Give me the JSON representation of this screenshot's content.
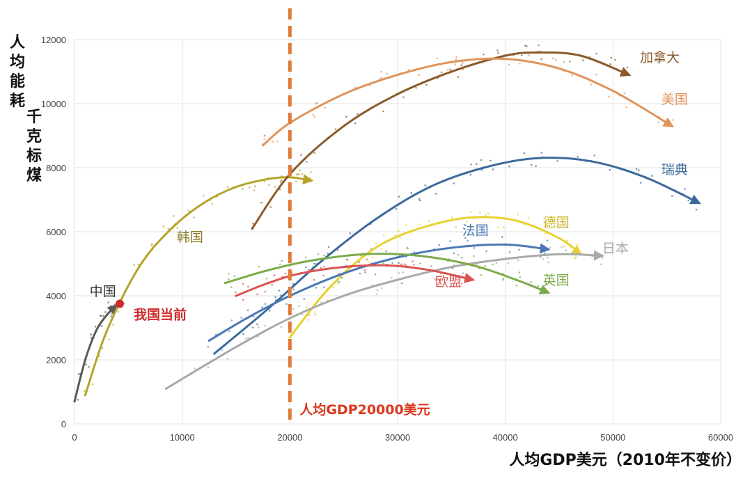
{
  "chart_data": {
    "type": "line",
    "ylabel_lines": [
      "人均能耗",
      "千克标煤"
    ],
    "xlabel": "人均GDP美元（2010年不变价）",
    "xlim": [
      0,
      60000
    ],
    "ylim": [
      0,
      12000
    ],
    "x_ticks": [
      0,
      10000,
      20000,
      30000,
      40000,
      50000,
      60000
    ],
    "y_ticks": [
      0,
      2000,
      4000,
      6000,
      8000,
      10000,
      12000
    ],
    "x_tick_labels": [
      "0",
      "10000",
      "20000",
      "30000",
      "40000",
      "50000",
      "60000"
    ],
    "y_tick_labels": [
      "0",
      "2000",
      "4000",
      "6000",
      "8000",
      "10000",
      "12000"
    ],
    "grid": true,
    "reference_line": {
      "x": 20000,
      "label": "人均GDP20000美元",
      "color": "#e07b39"
    },
    "current_point": {
      "x": 4200,
      "y": 3750,
      "label": "我国当前",
      "color": "#cc2b2b"
    },
    "series": [
      {
        "name": "中国",
        "color": "#5a5a5a",
        "x": [
          0,
          1000,
          2000,
          3000,
          3900
        ],
        "y": [
          700,
          2000,
          2900,
          3400,
          3700
        ]
      },
      {
        "name": "韩国",
        "color": "#b5a42a",
        "x": [
          1000,
          3000,
          6000,
          9000,
          12000,
          15000,
          18000,
          20000,
          22000
        ],
        "y": [
          900,
          2900,
          4900,
          6100,
          6900,
          7400,
          7650,
          7700,
          7600
        ]
      },
      {
        "name": "加拿大",
        "color": "#8b5a2b",
        "x": [
          16500,
          20000,
          25000,
          30000,
          35000,
          40000,
          43000,
          47000,
          51500
        ],
        "y": [
          6100,
          7800,
          9300,
          10300,
          11000,
          11500,
          11600,
          11500,
          10900
        ]
      },
      {
        "name": "美国",
        "color": "#e0935a",
        "x": [
          17500,
          20000,
          25000,
          30000,
          35000,
          40000,
          45000,
          50000,
          55500
        ],
        "y": [
          8700,
          9400,
          10300,
          10900,
          11300,
          11400,
          11100,
          10400,
          9300
        ]
      },
      {
        "name": "瑞典",
        "color": "#3b6a9c",
        "x": [
          13000,
          18000,
          23000,
          28000,
          33000,
          38000,
          43000,
          48000,
          53000,
          58000
        ],
        "y": [
          2200,
          3600,
          5100,
          6400,
          7400,
          8000,
          8300,
          8200,
          7700,
          6900
        ]
      },
      {
        "name": "德国",
        "color": "#e6d22e",
        "x": [
          20000,
          23000,
          26000,
          29000,
          33000,
          37000,
          41000,
          45000,
          47000
        ],
        "y": [
          2700,
          4000,
          5000,
          5700,
          6200,
          6450,
          6350,
          5800,
          5300
        ]
      },
      {
        "name": "法国",
        "color": "#4a78b5",
        "x": [
          12500,
          16000,
          20000,
          25000,
          30000,
          35000,
          40000,
          44000
        ],
        "y": [
          2600,
          3300,
          4000,
          4700,
          5200,
          5500,
          5600,
          5450
        ]
      },
      {
        "name": "日本",
        "color": "#a9a9a9",
        "x": [
          8500,
          15000,
          20000,
          25000,
          30000,
          35000,
          40000,
          45000,
          49000
        ],
        "y": [
          1100,
          2400,
          3300,
          4000,
          4500,
          4900,
          5150,
          5300,
          5250
        ]
      },
      {
        "name": "英国",
        "color": "#7caa4a",
        "x": [
          14000,
          18000,
          22000,
          27000,
          32000,
          37000,
          41000,
          44000
        ],
        "y": [
          4400,
          4800,
          5100,
          5300,
          5250,
          4950,
          4500,
          4100
        ]
      },
      {
        "name": "欧盟",
        "color": "#d9534f",
        "x": [
          15000,
          18000,
          21000,
          25000,
          29000,
          33000,
          37000
        ],
        "y": [
          4000,
          4400,
          4700,
          4900,
          4950,
          4800,
          4500
        ]
      }
    ],
    "label_points": [
      {
        "name": "中国",
        "x": 1400,
        "y": 4000,
        "color": "#333333"
      },
      {
        "name": "韩国",
        "x": 9500,
        "y": 5700,
        "color": "#8a7d28"
      },
      {
        "name": "加拿大",
        "x": 52500,
        "y": 11300,
        "color": "#8b5a2b"
      },
      {
        "name": "美国",
        "x": 54500,
        "y": 10000,
        "color": "#e0935a"
      },
      {
        "name": "瑞典",
        "x": 54500,
        "y": 7800,
        "color": "#3b6a9c"
      },
      {
        "name": "德国",
        "x": 43500,
        "y": 6150,
        "color": "#c9b82a"
      },
      {
        "name": "法国",
        "x": 36000,
        "y": 5900,
        "color": "#4a78b5"
      },
      {
        "name": "日本",
        "x": 49000,
        "y": 5350,
        "color": "#a9a9a9"
      },
      {
        "name": "英国",
        "x": 43500,
        "y": 4350,
        "color": "#7caa4a"
      },
      {
        "name": "欧盟",
        "x": 33500,
        "y": 4300,
        "color": "#d9534f"
      }
    ]
  }
}
